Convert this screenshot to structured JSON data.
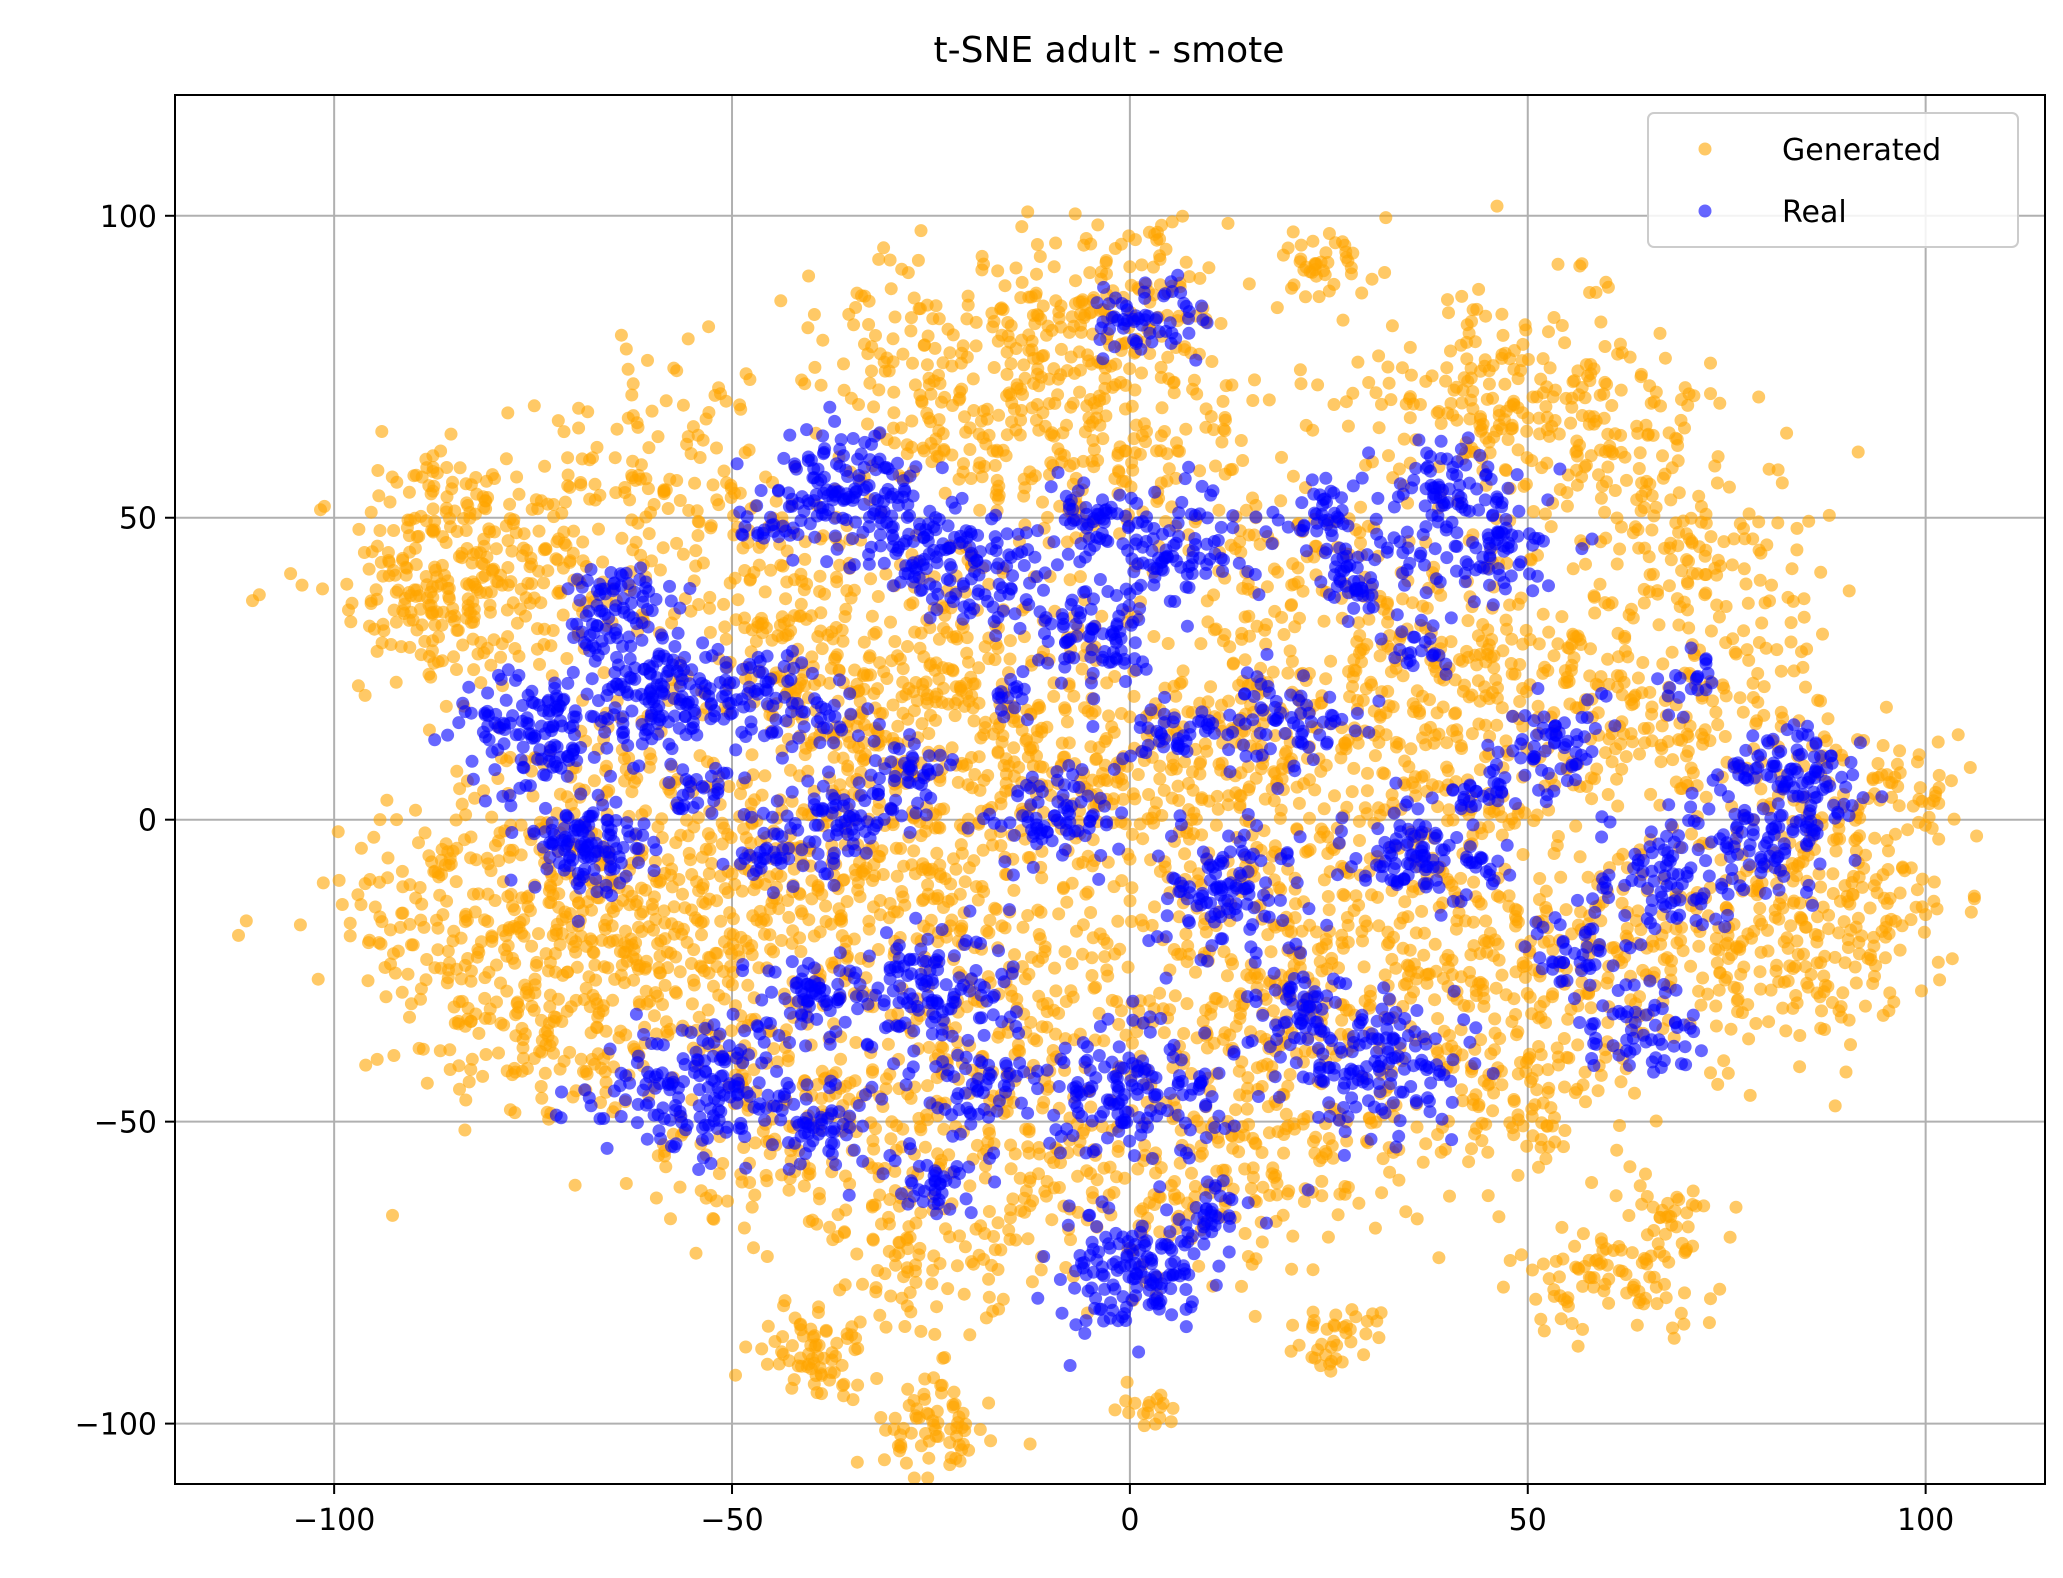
{
  "chart_data": {
    "type": "scatter",
    "title": "t-SNE adult - smote",
    "xlabel": "",
    "ylabel": "",
    "xlim": [
      -120,
      115
    ],
    "ylim": [
      -110,
      120
    ],
    "xticks": [
      -100,
      -50,
      0,
      50,
      100
    ],
    "yticks": [
      -100,
      -50,
      0,
      50,
      100
    ],
    "grid": true,
    "legend_position": "top-right",
    "series": [
      {
        "name": "Generated",
        "color": "#ffa500",
        "alpha": 0.6,
        "points_note": "dense t-SNE point cloud; cluster centers (x, y, spread, count) in data units",
        "clusters": [
          [
            -80,
            40,
            9,
            220
          ],
          [
            -85,
            52,
            6,
            60
          ],
          [
            -60,
            60,
            8,
            90
          ],
          [
            -50,
            45,
            9,
            100
          ],
          [
            -42,
            30,
            8,
            90
          ],
          [
            -80,
            -15,
            10,
            260
          ],
          [
            -75,
            -35,
            8,
            120
          ],
          [
            -60,
            -20,
            8,
            140
          ],
          [
            -45,
            -10,
            9,
            150
          ],
          [
            -35,
            15,
            9,
            150
          ],
          [
            -20,
            30,
            10,
            150
          ],
          [
            -20,
            75,
            10,
            220
          ],
          [
            -10,
            60,
            8,
            120
          ],
          [
            -2,
            85,
            8,
            120
          ],
          [
            5,
            65,
            8,
            80
          ],
          [
            -15,
            10,
            10,
            150
          ],
          [
            0,
            5,
            10,
            140
          ],
          [
            -30,
            -10,
            10,
            160
          ],
          [
            -10,
            -25,
            10,
            150
          ],
          [
            -30,
            -40,
            9,
            130
          ],
          [
            -45,
            -55,
            8,
            110
          ],
          [
            -25,
            -70,
            8,
            110
          ],
          [
            -10,
            -55,
            9,
            130
          ],
          [
            10,
            -60,
            8,
            110
          ],
          [
            15,
            -30,
            10,
            140
          ],
          [
            20,
            15,
            10,
            150
          ],
          [
            20,
            40,
            8,
            100
          ],
          [
            40,
            30,
            9,
            130
          ],
          [
            45,
            70,
            10,
            200
          ],
          [
            60,
            65,
            8,
            100
          ],
          [
            70,
            45,
            8,
            120
          ],
          [
            60,
            20,
            10,
            150
          ],
          [
            75,
            15,
            8,
            100
          ],
          [
            40,
            5,
            10,
            150
          ],
          [
            30,
            -25,
            10,
            150
          ],
          [
            50,
            -25,
            10,
            150
          ],
          [
            50,
            -45,
            8,
            110
          ],
          [
            70,
            -20,
            10,
            150
          ],
          [
            90,
            -10,
            8,
            120
          ],
          [
            95,
            5,
            6,
            60
          ],
          [
            85,
            -25,
            8,
            90
          ],
          [
            25,
            -55,
            8,
            80
          ],
          [
            15,
            -5,
            8,
            80
          ],
          [
            -90,
            35,
            6,
            80
          ],
          [
            -65,
            5,
            8,
            90
          ],
          [
            -55,
            -35,
            8,
            80
          ]
        ],
        "islands": [
          [
            -40,
            -88,
            4,
            70
          ],
          [
            -25,
            -100,
            4,
            70
          ],
          [
            25,
            -85,
            3,
            40
          ],
          [
            60,
            -75,
            6,
            100
          ],
          [
            68,
            -65,
            3,
            25
          ],
          [
            2,
            -97,
            2,
            18
          ],
          [
            25,
            92,
            3,
            40
          ],
          [
            4,
            98,
            2,
            6
          ]
        ]
      },
      {
        "name": "Real",
        "color": "#0000ff",
        "alpha": 0.6,
        "clusters": [
          [
            -75,
            15,
            4.5,
            130
          ],
          [
            -68,
            -5,
            4,
            90
          ],
          [
            -60,
            22,
            5,
            140
          ],
          [
            -65,
            35,
            4,
            70
          ],
          [
            -48,
            20,
            4,
            60
          ],
          [
            -40,
            17,
            3,
            35
          ],
          [
            -45,
            -5,
            3,
            40
          ],
          [
            -55,
            5,
            3,
            30
          ],
          [
            -35,
            55,
            5,
            140
          ],
          [
            -25,
            45,
            4,
            80
          ],
          [
            -17,
            40,
            4,
            70
          ],
          [
            -45,
            48,
            2.5,
            20
          ],
          [
            -35,
            0,
            4,
            70
          ],
          [
            -28,
            8,
            3,
            40
          ],
          [
            -10,
            0,
            4,
            80
          ],
          [
            -5,
            30,
            4,
            80
          ],
          [
            -5,
            50,
            3,
            40
          ],
          [
            5,
            45,
            5,
            100
          ],
          [
            3,
            83,
            3.5,
            60
          ],
          [
            5,
            15,
            3,
            40
          ],
          [
            12,
            -12,
            5,
            110
          ],
          [
            -25,
            -28,
            5,
            120
          ],
          [
            -40,
            -30,
            4,
            70
          ],
          [
            -55,
            -45,
            6,
            160
          ],
          [
            -40,
            -50,
            4,
            60
          ],
          [
            0,
            -45,
            6,
            150
          ],
          [
            -20,
            -45,
            4,
            60
          ],
          [
            -25,
            -60,
            3,
            40
          ],
          [
            0,
            -75,
            5,
            140
          ],
          [
            10,
            -65,
            3,
            40
          ],
          [
            25,
            50,
            3,
            40
          ],
          [
            30,
            40,
            4,
            70
          ],
          [
            40,
            55,
            4,
            70
          ],
          [
            45,
            45,
            4,
            70
          ],
          [
            37,
            28,
            2.5,
            20
          ],
          [
            20,
            15,
            4,
            70
          ],
          [
            35,
            -5,
            4,
            90
          ],
          [
            30,
            -40,
            6,
            160
          ],
          [
            22,
            -30,
            3,
            40
          ],
          [
            53,
            13,
            4,
            60
          ],
          [
            45,
            5,
            3,
            30
          ],
          [
            68,
            -10,
            5,
            100
          ],
          [
            80,
            -5,
            4,
            60
          ],
          [
            85,
            5,
            4,
            70
          ],
          [
            80,
            10,
            3,
            40
          ],
          [
            70,
            23,
            2.5,
            20
          ],
          [
            65,
            -35,
            4,
            60
          ],
          [
            55,
            -22,
            3,
            40
          ],
          [
            45,
            -8,
            2,
            15
          ],
          [
            -15,
            20,
            2,
            15
          ],
          [
            -70,
            -2,
            3,
            30
          ]
        ]
      }
    ]
  }
}
